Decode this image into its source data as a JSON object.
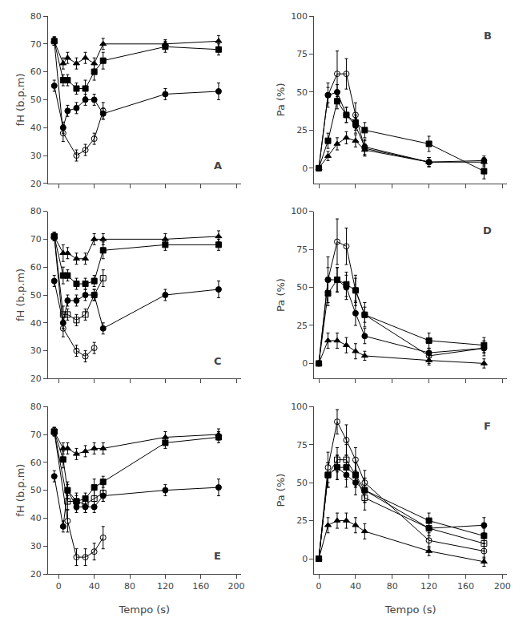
{
  "chart_data": [
    {
      "type": "line",
      "annotations": [
        "A"
      ],
      "x": [
        -5,
        5,
        10,
        20,
        30,
        40,
        50,
        120,
        180
      ],
      "xlim": [
        -12,
        205
      ],
      "xticks": [
        0,
        40,
        80,
        120,
        160,
        200
      ],
      "ylim": [
        20,
        80
      ],
      "yticks": [
        20,
        30,
        40,
        50,
        60,
        70,
        80
      ],
      "ylabel": "fH (b.p.m)",
      "grid": false,
      "tick_labels": "y",
      "series": [
        {
          "marker": "triangle-up",
          "color": "black",
          "values": [
            71,
            63,
            65,
            63,
            65,
            63,
            70,
            70,
            71
          ],
          "errors": [
            1.5,
            2,
            2,
            2,
            2,
            2,
            2,
            1.5,
            2
          ]
        },
        {
          "marker": "square",
          "color": "black",
          "values": [
            71,
            57,
            57,
            54,
            54,
            60,
            64,
            69,
            68
          ],
          "errors": [
            1.5,
            2,
            2,
            2,
            3,
            3,
            3,
            2,
            2
          ]
        },
        {
          "marker": "circle",
          "color": "black",
          "values": [
            55,
            40,
            46,
            47,
            50,
            50,
            45,
            52,
            53
          ],
          "errors": [
            2,
            2,
            2,
            2,
            2,
            2,
            2,
            2,
            3
          ]
        },
        {
          "marker": "circle-open",
          "color": "black",
          "values": [
            71,
            38,
            null,
            30,
            32,
            36,
            46,
            null,
            null
          ],
          "errors": [
            1.5,
            3,
            null,
            2,
            2,
            2,
            3,
            null,
            null
          ]
        }
      ]
    },
    {
      "type": "line",
      "annotations": [
        "B"
      ],
      "x": [
        0,
        10,
        20,
        30,
        40,
        50,
        120,
        180
      ],
      "xlim": [
        -5,
        205
      ],
      "xticks": [
        0,
        40,
        80,
        120,
        160,
        200
      ],
      "ylim": [
        -10,
        100
      ],
      "yticks": [
        0,
        25,
        50,
        75,
        100
      ],
      "ylabel": "Pa (%)",
      "grid": false,
      "tick_labels": "y",
      "series": [
        {
          "marker": "triangle-up",
          "color": "black",
          "values": [
            0,
            8,
            16,
            20,
            18,
            12,
            4,
            4
          ],
          "errors": [
            1,
            3,
            4,
            4,
            4,
            4,
            3,
            3
          ]
        },
        {
          "marker": "square",
          "color": "black",
          "values": [
            0,
            18,
            44,
            35,
            30,
            25,
            16,
            -2
          ],
          "errors": [
            1,
            5,
            5,
            5,
            5,
            5,
            5,
            5
          ]
        },
        {
          "marker": "circle",
          "color": "black",
          "values": [
            0,
            48,
            50,
            35,
            28,
            14,
            4,
            5
          ],
          "errors": [
            1,
            5,
            5,
            5,
            5,
            5,
            3,
            3
          ]
        },
        {
          "marker": "circle-open",
          "color": "black",
          "values": [
            0,
            48,
            62,
            62,
            35,
            13,
            4,
            null
          ],
          "errors": [
            1,
            8,
            15,
            10,
            8,
            5,
            3,
            null
          ]
        }
      ]
    },
    {
      "type": "line",
      "annotations": [
        "C"
      ],
      "x": [
        -5,
        5,
        10,
        20,
        30,
        40,
        50,
        120,
        180
      ],
      "xlim": [
        -12,
        205
      ],
      "xticks": [
        0,
        40,
        80,
        120,
        160,
        200
      ],
      "ylim": [
        20,
        80
      ],
      "yticks": [
        20,
        30,
        40,
        50,
        60,
        70,
        80
      ],
      "ylabel": "fH (b.p.m)",
      "grid": false,
      "tick_labels": "y",
      "series": [
        {
          "marker": "triangle-up",
          "color": "black",
          "values": [
            71,
            65,
            65,
            63,
            63,
            70,
            70,
            70,
            71
          ],
          "errors": [
            1.5,
            3,
            2,
            2,
            2,
            2,
            2,
            2,
            2
          ]
        },
        {
          "marker": "square",
          "color": "black",
          "values": [
            71,
            57,
            57,
            54,
            54,
            55,
            66,
            68,
            68
          ],
          "errors": [
            1.5,
            3,
            2,
            2,
            2,
            2,
            3,
            2,
            2
          ]
        },
        {
          "marker": "circle",
          "color": "black",
          "values": [
            55,
            40,
            48,
            48,
            50,
            50,
            38,
            50,
            52
          ],
          "errors": [
            2,
            2,
            2,
            2,
            2,
            2,
            2,
            2,
            3
          ]
        },
        {
          "marker": "square-open",
          "color": "black",
          "values": [
            71,
            43,
            43,
            41,
            43,
            50,
            56,
            null,
            null
          ],
          "errors": [
            1.5,
            3,
            2,
            2,
            2,
            2,
            3,
            null,
            null
          ]
        },
        {
          "marker": "circle-open",
          "color": "black",
          "values": [
            71,
            38,
            null,
            30,
            28,
            31,
            null,
            null,
            null
          ],
          "errors": [
            1.5,
            3,
            null,
            2,
            2,
            2,
            null,
            null,
            null
          ]
        }
      ]
    },
    {
      "type": "line",
      "annotations": [
        "D"
      ],
      "x": [
        0,
        10,
        20,
        30,
        40,
        50,
        120,
        180
      ],
      "xlim": [
        -5,
        205
      ],
      "xticks": [
        0,
        40,
        80,
        120,
        160,
        200
      ],
      "ylim": [
        -10,
        100
      ],
      "yticks": [
        0,
        25,
        50,
        75,
        100
      ],
      "ylabel": "Pa (%)",
      "grid": false,
      "tick_labels": "y",
      "series": [
        {
          "marker": "triangle-up",
          "color": "black",
          "values": [
            0,
            15,
            15,
            12,
            8,
            5,
            2,
            0
          ],
          "errors": [
            1,
            5,
            5,
            5,
            5,
            3,
            3,
            3
          ]
        },
        {
          "marker": "square",
          "color": "black",
          "values": [
            0,
            46,
            55,
            52,
            48,
            32,
            15,
            12
          ],
          "errors": [
            1,
            8,
            8,
            8,
            8,
            5,
            5,
            5
          ]
        },
        {
          "marker": "circle",
          "color": "black",
          "values": [
            0,
            55,
            55,
            50,
            33,
            18,
            7,
            10
          ],
          "errors": [
            1,
            8,
            8,
            8,
            8,
            5,
            3,
            3
          ]
        },
        {
          "marker": "circle-open",
          "color": "black",
          "values": [
            0,
            55,
            80,
            77,
            48,
            32,
            5,
            10
          ],
          "errors": [
            1,
            15,
            15,
            12,
            10,
            8,
            5,
            5
          ]
        }
      ]
    },
    {
      "type": "line",
      "annotations": [
        "E"
      ],
      "x": [
        -5,
        5,
        10,
        20,
        30,
        40,
        50,
        120,
        180
      ],
      "xlim": [
        -12,
        205
      ],
      "xticks": [
        0,
        40,
        80,
        120,
        160,
        200
      ],
      "ylim": [
        20,
        80
      ],
      "yticks": [
        20,
        30,
        40,
        50,
        60,
        70,
        80
      ],
      "xlabel": "Tempo (s)",
      "ylabel": "fH (b.p.m)",
      "grid": false,
      "series": [
        {
          "marker": "triangle-up",
          "color": "black",
          "values": [
            71,
            65,
            65,
            63,
            64,
            65,
            65,
            69,
            70
          ],
          "errors": [
            1.5,
            2,
            2,
            2,
            2,
            2,
            2,
            2,
            2
          ]
        },
        {
          "marker": "square",
          "color": "black",
          "values": [
            71,
            61,
            50,
            46,
            47,
            51,
            53,
            67,
            69
          ],
          "errors": [
            1.5,
            3,
            3,
            2,
            2,
            3,
            2,
            2,
            2
          ]
        },
        {
          "marker": "circle",
          "color": "black",
          "values": [
            55,
            37,
            50,
            44,
            44,
            44,
            48,
            50,
            51
          ],
          "errors": [
            2,
            2,
            2,
            2,
            2,
            2,
            2,
            2,
            3
          ]
        },
        {
          "marker": "square-open",
          "color": "black",
          "values": [
            71,
            null,
            46,
            46,
            45,
            47,
            49,
            null,
            null
          ],
          "errors": [
            1.5,
            null,
            3,
            3,
            3,
            3,
            3,
            null,
            null
          ]
        },
        {
          "marker": "circle-open",
          "color": "black",
          "values": [
            71,
            null,
            39,
            26,
            26,
            28,
            33,
            null,
            null
          ],
          "errors": [
            1.5,
            null,
            4,
            3,
            3,
            3,
            4,
            null,
            null
          ]
        }
      ]
    },
    {
      "type": "line",
      "annotations": [
        "F"
      ],
      "x": [
        0,
        10,
        20,
        30,
        40,
        50,
        120,
        180
      ],
      "xlim": [
        -5,
        205
      ],
      "xticks": [
        0,
        40,
        80,
        120,
        160,
        200
      ],
      "ylim": [
        -10,
        100
      ],
      "yticks": [
        0,
        25,
        50,
        75,
        100
      ],
      "xlabel": "Tempo (s)",
      "ylabel": "Pa (%)",
      "grid": false,
      "series": [
        {
          "marker": "triangle-up",
          "color": "black",
          "values": [
            0,
            22,
            25,
            25,
            22,
            18,
            5,
            -2
          ],
          "errors": [
            1,
            5,
            5,
            5,
            5,
            5,
            3,
            3
          ]
        },
        {
          "marker": "square",
          "color": "black",
          "values": [
            0,
            55,
            60,
            60,
            55,
            45,
            25,
            15
          ],
          "errors": [
            1,
            8,
            8,
            8,
            8,
            8,
            5,
            5
          ]
        },
        {
          "marker": "circle",
          "color": "black",
          "values": [
            0,
            55,
            60,
            55,
            50,
            45,
            20,
            22
          ],
          "errors": [
            1,
            8,
            8,
            8,
            8,
            8,
            5,
            5
          ]
        },
        {
          "marker": "square-open",
          "color": "black",
          "values": [
            0,
            55,
            65,
            65,
            55,
            40,
            20,
            10
          ],
          "errors": [
            1,
            8,
            8,
            10,
            8,
            8,
            5,
            5
          ]
        },
        {
          "marker": "circle-open",
          "color": "black",
          "values": [
            0,
            60,
            90,
            78,
            65,
            50,
            12,
            5
          ],
          "errors": [
            1,
            10,
            8,
            10,
            8,
            8,
            5,
            5
          ]
        }
      ]
    }
  ]
}
